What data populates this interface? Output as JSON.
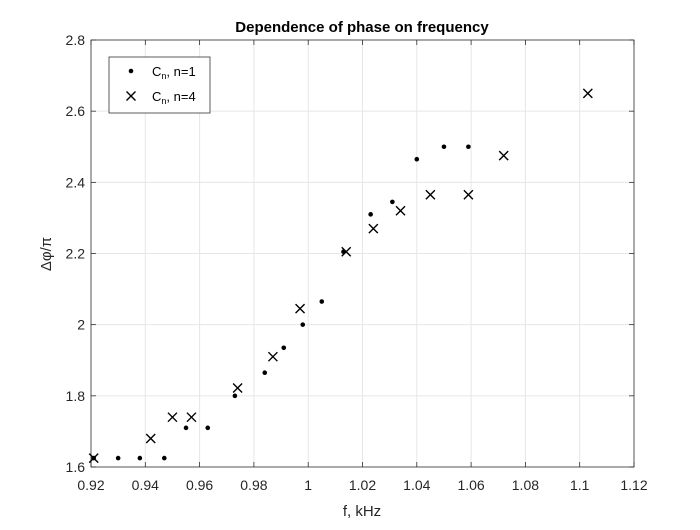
{
  "chart_data": {
    "type": "scatter",
    "title": "Dependence of phase on frequency",
    "xlabel": "f, kHz",
    "ylabel": "Δφ/π",
    "xlim": [
      0.92,
      1.12
    ],
    "ylim": [
      1.6,
      2.8
    ],
    "xticks": [
      "0.92",
      "0.94",
      "0.96",
      "0.98",
      "1",
      "1.02",
      "1.04",
      "1.06",
      "1.08",
      "1.1",
      "1.12"
    ],
    "yticks": [
      "1.6",
      "1.8",
      "2",
      "2.2",
      "2.4",
      "2.6",
      "2.8"
    ],
    "grid": true,
    "legend_position": "top-left",
    "series": [
      {
        "name": "Cn, n=1",
        "legend_main": "C",
        "legend_sub": "n",
        "legend_rest": ", n=1",
        "marker": "dot",
        "color": "#000000",
        "points": [
          [
            0.921,
            1.625
          ],
          [
            0.93,
            1.625
          ],
          [
            0.938,
            1.625
          ],
          [
            0.947,
            1.625
          ],
          [
            0.955,
            1.71
          ],
          [
            0.963,
            1.71
          ],
          [
            0.973,
            1.8
          ],
          [
            0.984,
            1.865
          ],
          [
            0.991,
            1.935
          ],
          [
            0.998,
            2.0
          ],
          [
            1.005,
            2.065
          ],
          [
            1.013,
            2.205
          ],
          [
            1.023,
            2.31
          ],
          [
            1.031,
            2.345
          ],
          [
            1.04,
            2.465
          ],
          [
            1.05,
            2.5
          ],
          [
            1.059,
            2.5
          ]
        ]
      },
      {
        "name": "Cn, n=4",
        "legend_main": "C",
        "legend_sub": "n",
        "legend_rest": ", n=4",
        "marker": "x",
        "color": "#000000",
        "points": [
          [
            0.921,
            1.625
          ],
          [
            0.942,
            1.68
          ],
          [
            0.95,
            1.74
          ],
          [
            0.957,
            1.74
          ],
          [
            0.974,
            1.822
          ],
          [
            0.987,
            1.91
          ],
          [
            0.997,
            2.045
          ],
          [
            1.014,
            2.205
          ],
          [
            1.024,
            2.27
          ],
          [
            1.034,
            2.32
          ],
          [
            1.045,
            2.365
          ],
          [
            1.059,
            2.365
          ],
          [
            1.072,
            2.475
          ],
          [
            1.103,
            2.65
          ]
        ]
      }
    ]
  }
}
